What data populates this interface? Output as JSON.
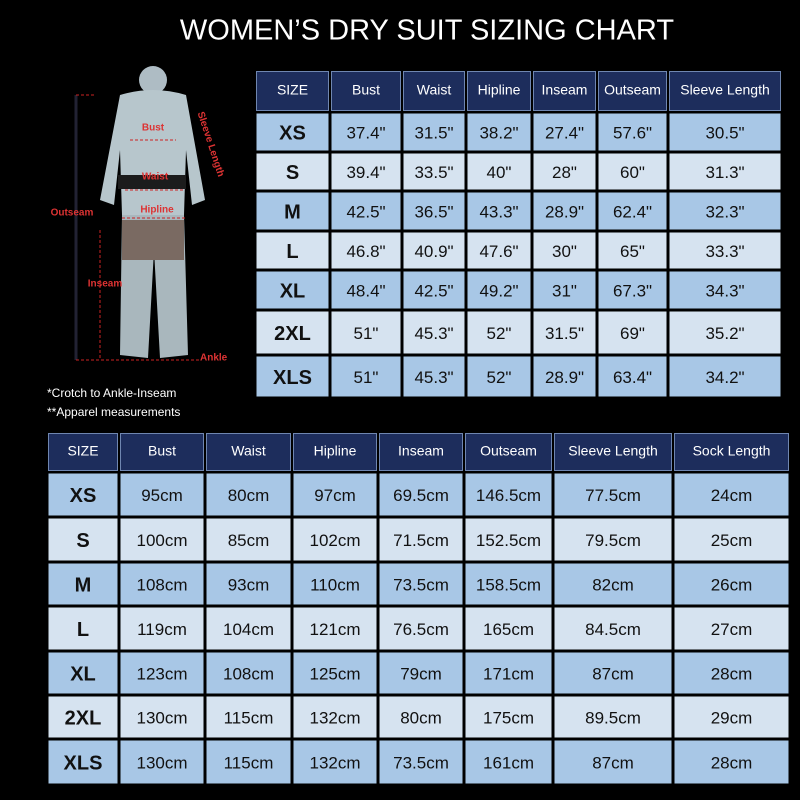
{
  "header": {
    "title": "WOMEN’S DRY SUIT SIZING CHART"
  },
  "figure": {
    "labels": {
      "bust": "Bust",
      "sleeve": "Sleeve Length",
      "waist": "Waist",
      "hipline": "Hipline",
      "outseam": "Outseam",
      "inseam": "Inseam",
      "ankle": "Ankle"
    }
  },
  "notes": [
    "*Crotch to Ankle-Inseam",
    "**Apparel measurements"
  ],
  "table_inches": {
    "header": [
      "SIZE",
      "Bust",
      "Waist",
      "Hipline",
      "Inseam",
      "Outseam",
      "Sleeve Length"
    ],
    "rows": [
      [
        "XS",
        "37.4\"",
        "31.5\"",
        "38.2\"",
        "27.4\"",
        "57.6\"",
        "30.5\""
      ],
      [
        "S",
        "39.4\"",
        "33.5\"",
        "40\"",
        "28\"",
        "60\"",
        "31.3\""
      ],
      [
        "M",
        "42.5\"",
        "36.5\"",
        "43.3\"",
        "28.9\"",
        "62.4\"",
        "32.3\""
      ],
      [
        "L",
        "46.8\"",
        "40.9\"",
        "47.6\"",
        "30\"",
        "65\"",
        "33.3\""
      ],
      [
        "XL",
        "48.4\"",
        "42.5\"",
        "49.2\"",
        "31\"",
        "67.3\"",
        "34.3\""
      ],
      [
        "2XL",
        "51\"",
        "45.3\"",
        "52\"",
        "31.5\"",
        "69\"",
        "35.2\""
      ],
      [
        "XLS",
        "51\"",
        "45.3\"",
        "52\"",
        "28.9\"",
        "63.4\"",
        "34.2\""
      ]
    ]
  },
  "table_cm": {
    "header": [
      "SIZE",
      "Bust",
      "Waist",
      "Hipline",
      "Inseam",
      "Outseam",
      "Sleeve Length",
      "Sock Length"
    ],
    "rows": [
      [
        "XS",
        "95cm",
        "80cm",
        "97cm",
        "69.5cm",
        "146.5cm",
        "77.5cm",
        "24cm"
      ],
      [
        "S",
        "100cm",
        "85cm",
        "102cm",
        "71.5cm",
        "152.5cm",
        "79.5cm",
        "25cm"
      ],
      [
        "M",
        "108cm",
        "93cm",
        "110cm",
        "73.5cm",
        "158.5cm",
        "82cm",
        "26cm"
      ],
      [
        "L",
        "119cm",
        "104cm",
        "121cm",
        "76.5cm",
        "165cm",
        "84.5cm",
        "27cm"
      ],
      [
        "XL",
        "123cm",
        "108cm",
        "125cm",
        "79cm",
        "171cm",
        "87cm",
        "28cm"
      ],
      [
        "2XL",
        "130cm",
        "115cm",
        "132cm",
        "80cm",
        "175cm",
        "89.5cm",
        "29cm"
      ],
      [
        "XLS",
        "130cm",
        "115cm",
        "132cm",
        "73.5cm",
        "161cm",
        "87cm",
        "28cm"
      ]
    ]
  }
}
